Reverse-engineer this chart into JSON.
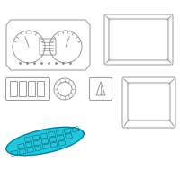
{
  "bg_color": "#ffffff",
  "line_color": "#888888",
  "highlight_color": "#00bcd4",
  "highlight_edge": "#007a9e",
  "figsize": [
    2.0,
    2.0
  ],
  "dpi": 100
}
